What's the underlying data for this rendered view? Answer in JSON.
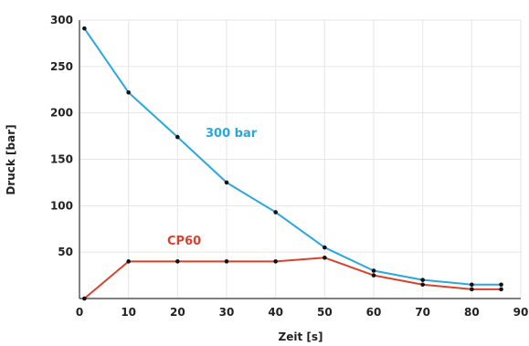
{
  "chart_data": {
    "type": "line",
    "xlabel": "Zeit [s]",
    "ylabel": "Druck [bar]",
    "xlim": [
      0,
      90
    ],
    "ylim": [
      0,
      300
    ],
    "x_ticks": [
      0,
      10,
      20,
      30,
      40,
      50,
      60,
      70,
      80,
      90
    ],
    "y_ticks": [
      50,
      100,
      150,
      200,
      250,
      300
    ],
    "grid": true,
    "series": [
      {
        "name": "300 bar",
        "color": "#2aa7df",
        "x": [
          1,
          10,
          20,
          30,
          40,
          50,
          60,
          70,
          80,
          86
        ],
        "y": [
          291,
          222,
          174,
          125,
          93,
          55,
          30,
          20,
          15,
          15
        ]
      },
      {
        "name": "CP60",
        "color": "#d8422c",
        "x": [
          1,
          10,
          20,
          30,
          40,
          50,
          60,
          70,
          80,
          86
        ],
        "y": [
          0,
          40,
          40,
          40,
          40,
          44,
          25,
          15,
          10,
          10
        ]
      }
    ]
  }
}
